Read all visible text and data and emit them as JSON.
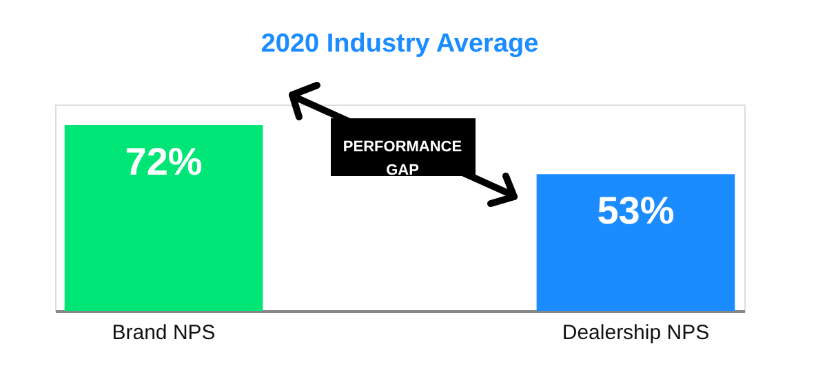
{
  "chart_data": {
    "type": "bar",
    "title": "2020 Industry Average",
    "categories": [
      "Brand NPS",
      "Dealership NPS"
    ],
    "values": [
      72,
      53
    ],
    "colors": [
      "#00e676",
      "#1a8cff"
    ],
    "value_labels": [
      "72%",
      "53%"
    ],
    "annotations": [
      "PERFORMANCE GAP"
    ]
  }
}
